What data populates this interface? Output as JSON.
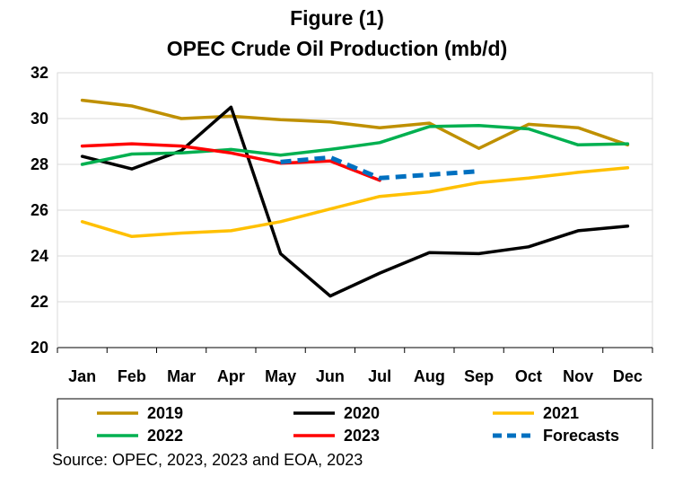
{
  "title_line1": "Figure (1)",
  "title_line2": "OPEC Crude Oil Production (mb/d)",
  "source": "Source: OPEC, 2023, 2023 and EOA, 2023",
  "chart_data": {
    "type": "line",
    "categories": [
      "Jan",
      "Feb",
      "Mar",
      "Apr",
      "May",
      "Jun",
      "Jul",
      "Aug",
      "Sep",
      "Oct",
      "Nov",
      "Dec"
    ],
    "ylim": [
      20,
      32
    ],
    "yticks": [
      20,
      22,
      24,
      26,
      28,
      30,
      32
    ],
    "grid": true,
    "legend_position": "bottom",
    "series": [
      {
        "name": "2019",
        "color": "#bf9000",
        "dash": false,
        "values": [
          30.8,
          30.55,
          30.0,
          30.1,
          29.95,
          29.85,
          29.6,
          29.8,
          28.7,
          29.75,
          29.6,
          28.85
        ]
      },
      {
        "name": "2020",
        "color": "#000000",
        "dash": false,
        "values": [
          28.35,
          27.8,
          28.6,
          30.5,
          24.1,
          22.25,
          23.25,
          24.15,
          24.1,
          24.4,
          25.1,
          25.3
        ]
      },
      {
        "name": "2021",
        "color": "#ffc000",
        "dash": false,
        "values": [
          25.5,
          24.85,
          25.0,
          25.1,
          25.5,
          26.05,
          26.6,
          26.8,
          27.2,
          27.4,
          27.65,
          27.85
        ]
      },
      {
        "name": "2022",
        "color": "#00b050",
        "dash": false,
        "values": [
          28.0,
          28.45,
          28.5,
          28.65,
          28.4,
          28.65,
          28.95,
          29.65,
          29.7,
          29.55,
          28.85,
          28.9
        ]
      },
      {
        "name": "2023",
        "color": "#ff0000",
        "dash": false,
        "values": [
          28.8,
          28.9,
          28.8,
          28.5,
          28.05,
          28.15,
          27.3,
          null,
          null,
          null,
          null,
          null
        ]
      },
      {
        "name": "Forecasts",
        "color": "#0070c0",
        "dash": true,
        "values": [
          null,
          null,
          null,
          null,
          28.1,
          28.3,
          27.4,
          27.55,
          27.7,
          null,
          null,
          null
        ]
      }
    ]
  }
}
